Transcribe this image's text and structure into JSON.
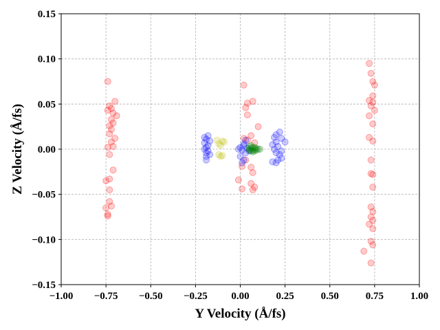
{
  "chart_data": {
    "type": "scatter",
    "title": "",
    "xlabel": "Y Velocity (Å/fs)",
    "ylabel": "Z Velocity (Å/fs)",
    "xlim": [
      -1.0,
      1.0
    ],
    "ylim": [
      -0.15,
      0.15
    ],
    "xticks": [
      -1.0,
      -0.75,
      -0.5,
      -0.25,
      0.0,
      0.25,
      0.5,
      0.75,
      1.0
    ],
    "xtick_labels": [
      "−1.00",
      "−0.75",
      "−0.50",
      "−0.25",
      "0.00",
      "0.25",
      "0.50",
      "0.75",
      "1.00"
    ],
    "yticks": [
      -0.15,
      -0.1,
      -0.05,
      0.0,
      0.05,
      0.1,
      0.15
    ],
    "ytick_labels": [
      "−0.15",
      "−0.10",
      "−0.05",
      "0.00",
      "0.05",
      "0.10",
      "0.15"
    ],
    "grid": true,
    "marker_alpha": 0.2,
    "series": [
      {
        "color": "#ff0000",
        "points": [
          [
            -0.74,
            0.075
          ],
          [
            -0.7,
            0.053
          ],
          [
            -0.73,
            0.048
          ],
          [
            -0.72,
            0.045
          ],
          [
            -0.74,
            0.043
          ],
          [
            -0.71,
            0.04
          ],
          [
            -0.69,
            0.037
          ],
          [
            -0.72,
            0.033
          ],
          [
            -0.71,
            0.029
          ],
          [
            -0.73,
            0.026
          ],
          [
            -0.72,
            0.022
          ],
          [
            -0.73,
            0.017
          ],
          [
            -0.7,
            0.012
          ],
          [
            -0.72,
            0.008
          ],
          [
            -0.71,
            0.003
          ],
          [
            -0.74,
            0.002
          ],
          [
            -0.73,
            -0.006
          ],
          [
            -0.71,
            -0.023
          ],
          [
            -0.73,
            -0.033
          ],
          [
            -0.75,
            -0.035
          ],
          [
            -0.73,
            -0.045
          ],
          [
            -0.73,
            -0.058
          ],
          [
            -0.72,
            -0.063
          ],
          [
            -0.75,
            -0.065
          ],
          [
            -0.74,
            -0.072
          ],
          [
            -0.74,
            -0.074
          ],
          [
            0.72,
            0.095
          ],
          [
            0.73,
            0.084
          ],
          [
            0.74,
            0.075
          ],
          [
            0.75,
            0.071
          ],
          [
            0.74,
            0.059
          ],
          [
            0.72,
            0.054
          ],
          [
            0.74,
            0.052
          ],
          [
            0.73,
            0.048
          ],
          [
            0.75,
            0.043
          ],
          [
            0.72,
            0.037
          ],
          [
            0.74,
            0.028
          ],
          [
            0.72,
            0.013
          ],
          [
            0.74,
            0.009
          ],
          [
            0.73,
            -0.012
          ],
          [
            0.73,
            -0.027
          ],
          [
            0.74,
            -0.028
          ],
          [
            0.74,
            -0.042
          ],
          [
            0.73,
            -0.064
          ],
          [
            0.74,
            -0.069
          ],
          [
            0.73,
            -0.075
          ],
          [
            0.74,
            -0.079
          ],
          [
            0.72,
            -0.083
          ],
          [
            0.74,
            -0.088
          ],
          [
            0.73,
            -0.102
          ],
          [
            0.74,
            -0.106
          ],
          [
            0.69,
            -0.113
          ],
          [
            0.73,
            -0.126
          ],
          [
            0.02,
            0.071
          ],
          [
            0.04,
            0.051
          ],
          [
            0.07,
            0.053
          ],
          [
            0.03,
            0.046
          ],
          [
            0.04,
            0.038
          ],
          [
            0.1,
            0.025
          ],
          [
            0.06,
            0.015
          ],
          [
            0.02,
            0.012
          ],
          [
            0.04,
            0.01
          ],
          [
            0.08,
            0.007
          ],
          [
            0.03,
            -0.012
          ],
          [
            0.06,
            -0.02
          ],
          [
            0.07,
            -0.026
          ],
          [
            0.01,
            -0.019
          ],
          [
            -0.01,
            -0.034
          ],
          [
            0.06,
            -0.038
          ],
          [
            0.08,
            -0.042
          ],
          [
            0.01,
            -0.044
          ],
          [
            0.07,
            -0.045
          ]
        ]
      },
      {
        "color": "#0000ff",
        "points": [
          [
            -0.18,
            0.015
          ],
          [
            -0.2,
            0.013
          ],
          [
            -0.19,
            0.011
          ],
          [
            -0.17,
            0.009
          ],
          [
            -0.2,
            0.007
          ],
          [
            -0.18,
            0.004
          ],
          [
            -0.19,
            0.002
          ],
          [
            -0.2,
            0.0
          ],
          [
            -0.18,
            -0.002
          ],
          [
            -0.19,
            -0.004
          ],
          [
            -0.17,
            -0.006
          ],
          [
            -0.19,
            -0.008
          ],
          [
            -0.19,
            -0.012
          ],
          [
            0.0,
            0.002
          ],
          [
            0.02,
            0.004
          ],
          [
            0.04,
            0.001
          ],
          [
            0.05,
            -0.002
          ],
          [
            0.01,
            -0.001
          ],
          [
            0.03,
            -0.004
          ],
          [
            0.02,
            0.006
          ],
          [
            0.0,
            -0.008
          ],
          [
            0.03,
            0.01
          ],
          [
            0.02,
            -0.012
          ],
          [
            0.01,
            -0.015
          ],
          [
            -0.01,
            0.0
          ],
          [
            0.22,
            0.019
          ],
          [
            0.2,
            0.016
          ],
          [
            0.19,
            0.013
          ],
          [
            0.23,
            0.012
          ],
          [
            0.25,
            0.008
          ],
          [
            0.2,
            0.008
          ],
          [
            0.18,
            0.005
          ],
          [
            0.21,
            0.003
          ],
          [
            0.19,
            0.0
          ],
          [
            0.23,
            -0.002
          ],
          [
            0.2,
            -0.004
          ],
          [
            0.22,
            -0.006
          ],
          [
            0.23,
            -0.01
          ],
          [
            0.21,
            -0.012
          ],
          [
            0.18,
            -0.014
          ],
          [
            0.2,
            -0.015
          ]
        ]
      },
      {
        "color": "#bfbf00",
        "points": [
          [
            -0.13,
            0.01
          ],
          [
            -0.1,
            0.009
          ],
          [
            -0.12,
            0.006
          ],
          [
            -0.11,
            0.004
          ],
          [
            -0.09,
            0.008
          ],
          [
            -0.12,
            -0.006
          ],
          [
            -0.11,
            -0.008
          ],
          [
            -0.1,
            -0.007
          ]
        ]
      },
      {
        "color": "#008000",
        "points": [
          [
            0.05,
            0.003
          ],
          [
            0.06,
            0.001
          ],
          [
            0.07,
            0.002
          ],
          [
            0.08,
            0.0
          ],
          [
            0.09,
            -0.001
          ],
          [
            0.06,
            -0.002
          ],
          [
            0.05,
            -0.001
          ],
          [
            0.07,
            -0.003
          ],
          [
            0.08,
            0.002
          ],
          [
            0.1,
            0.0
          ],
          [
            0.09,
            0.001
          ],
          [
            0.06,
            0.004
          ],
          [
            0.07,
            -0.001
          ],
          [
            0.05,
            0.0
          ],
          [
            0.08,
            -0.002
          ],
          [
            0.11,
            0.0
          ]
        ]
      }
    ]
  }
}
